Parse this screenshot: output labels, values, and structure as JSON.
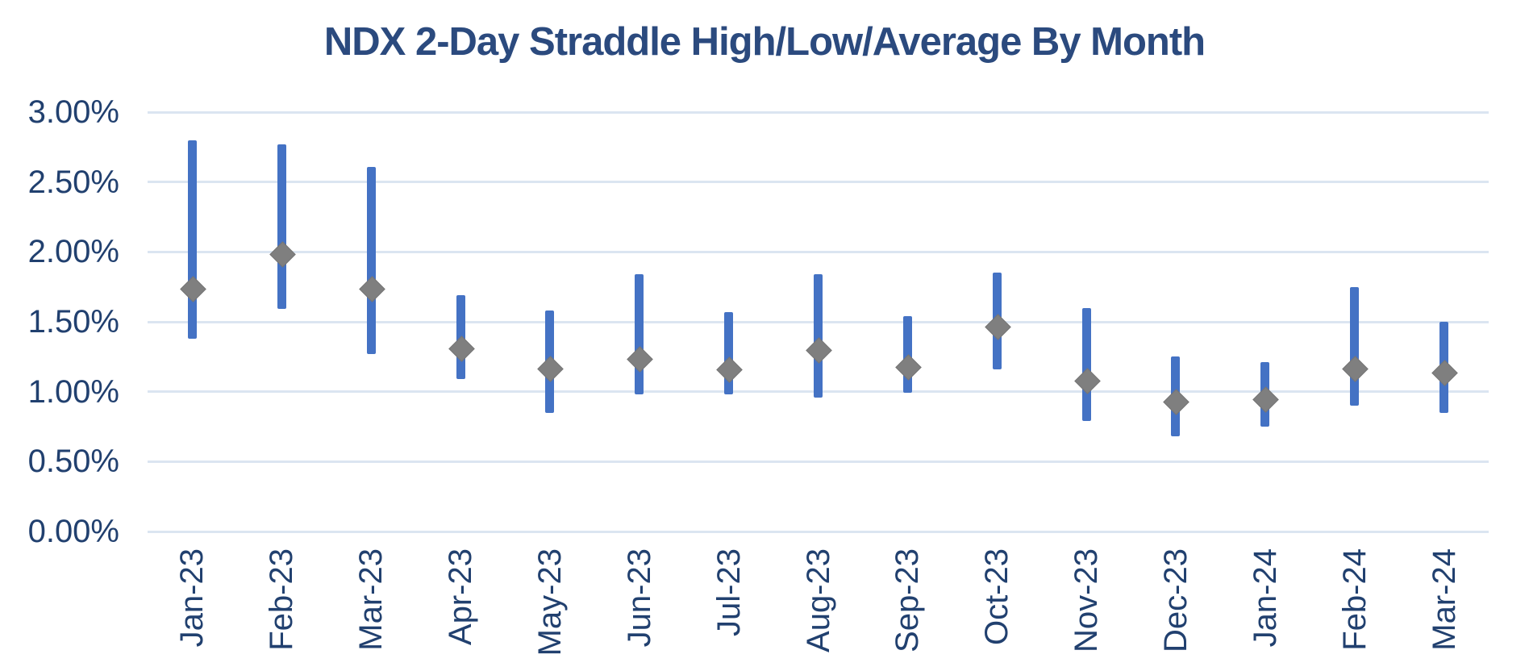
{
  "chart_data": {
    "type": "range-bar",
    "title": "NDX 2-Day Straddle High/Low/Average By Month",
    "categories": [
      "Jan-23",
      "Feb-23",
      "Mar-23",
      "Apr-23",
      "May-23",
      "Jun-23",
      "Jul-23",
      "Aug-23",
      "Sep-23",
      "Oct-23",
      "Nov-23",
      "Dec-23",
      "Jan-24",
      "Feb-24",
      "Mar-24"
    ],
    "series": [
      {
        "name": "High",
        "values": [
          2.8,
          2.77,
          2.61,
          1.69,
          1.58,
          1.84,
          1.57,
          1.84,
          1.54,
          1.85,
          1.6,
          1.25,
          1.21,
          1.75,
          1.5
        ]
      },
      {
        "name": "Low",
        "values": [
          1.38,
          1.59,
          1.27,
          1.09,
          0.85,
          0.98,
          0.98,
          0.96,
          0.99,
          1.16,
          0.79,
          0.68,
          0.75,
          0.9,
          0.85
        ]
      },
      {
        "name": "Average",
        "values": [
          1.74,
          1.99,
          1.74,
          1.31,
          1.17,
          1.24,
          1.16,
          1.3,
          1.18,
          1.47,
          1.08,
          0.93,
          0.95,
          1.17,
          1.14
        ]
      }
    ],
    "units": "percent",
    "ylim": [
      0,
      3
    ],
    "y_ticks": [
      3.0,
      2.5,
      2.0,
      1.5,
      1.0,
      0.5,
      0.0
    ],
    "y_tick_labels": [
      "3.00%",
      "2.50%",
      "2.00%",
      "1.50%",
      "1.00%",
      "0.50%",
      "0.00%"
    ],
    "xlabel": "",
    "ylabel": "",
    "grid": true,
    "legend": "none",
    "marker_shape": "diamond",
    "colors": {
      "range_bar": "#4472c4",
      "average_marker": "#7f7f7f",
      "gridline": "#dbe5f1",
      "title_text": "#2b4a7e",
      "axis_label_text": "#21406f",
      "background": "#ffffff"
    }
  }
}
